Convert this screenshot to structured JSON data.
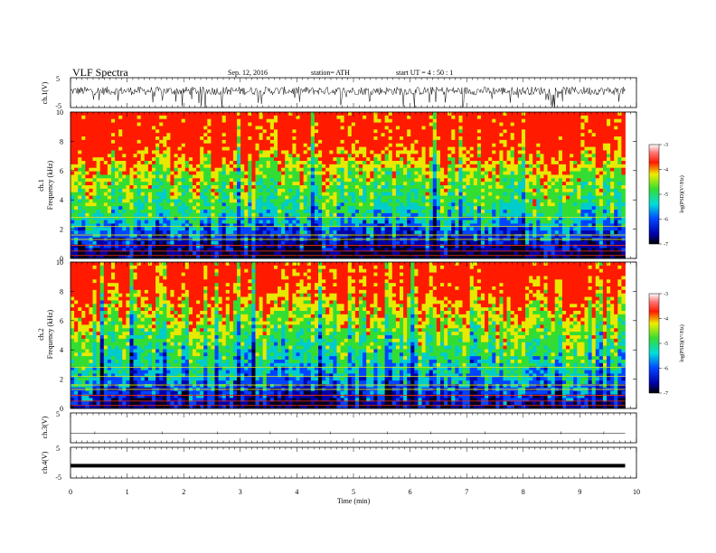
{
  "header": {
    "title": "VLF  Spectra",
    "date": "Sep. 12, 2016",
    "station": "station= ATH",
    "start": "start  UT  =   4  : 50 : 1"
  },
  "chart_data": [
    {
      "type": "line",
      "name": "ch1-waveform",
      "ylabel": "ch.1(V)",
      "ylim": [
        -5,
        5
      ],
      "yticks": [
        "5",
        "-5"
      ],
      "xlim": [
        0,
        10
      ],
      "description_level": 0.6
    },
    {
      "type": "heatmap",
      "name": "ch1-spectrogram",
      "ylabel": "ch.1\nFrequency  (kHz)",
      "ylabel_line1": "ch.1",
      "ylabel_line2": "Frequency  (kHz)",
      "ylim": [
        0,
        10
      ],
      "yticks": [
        "10",
        "8",
        "6",
        "4",
        "2",
        "0"
      ],
      "xlim": [
        0,
        9.8
      ],
      "colorbar": {
        "label": "log(PSD)(V²/Hz)",
        "ticks": [
          "-3",
          "-4",
          "-5",
          "-6",
          "-7"
        ],
        "range": [
          -7,
          -3
        ]
      },
      "psd_profile_khz": [
        0,
        1,
        2,
        3,
        4,
        5,
        6,
        7,
        8,
        9,
        10
      ],
      "psd_profile_log": [
        -7,
        -6.4,
        -5.9,
        -5.3,
        -5.0,
        -4.8,
        -4.5,
        -4.1,
        -3.7,
        -3.6,
        -3.6
      ]
    },
    {
      "type": "heatmap",
      "name": "ch2-spectrogram",
      "ylabel_line1": "ch.2",
      "ylabel_line2": "Frequency  (kHz)",
      "ylim": [
        0,
        10
      ],
      "yticks": [
        "10",
        "8",
        "6",
        "4",
        "2",
        "0"
      ],
      "xlim": [
        0,
        9.8
      ],
      "colorbar": {
        "label": "log(PSD)(V²/Hz)",
        "ticks": [
          "-3",
          "-4",
          "-5",
          "-6",
          "-7"
        ],
        "range": [
          -7,
          -3
        ]
      },
      "psd_profile_khz": [
        0,
        1,
        2,
        3,
        4,
        5,
        6,
        7,
        8,
        9,
        10
      ],
      "psd_profile_log": [
        -6.8,
        -6.2,
        -5.8,
        -5.4,
        -5.1,
        -4.9,
        -4.6,
        -4.3,
        -3.9,
        -3.7,
        -3.7
      ]
    },
    {
      "type": "line",
      "name": "ch3-waveform",
      "ylabel": "ch.3(V)",
      "ylim": [
        -5,
        5
      ],
      "yticks": [
        "5"
      ],
      "level": 0
    },
    {
      "type": "line",
      "name": "ch4-waveform",
      "ylabel": "ch.4(V)",
      "ylim": [
        -5,
        5
      ],
      "yticks": [
        "5",
        "-5"
      ],
      "level": -1.0
    }
  ],
  "xaxis": {
    "label": "Time  (min)",
    "ticks": [
      "0",
      "1",
      "2",
      "3",
      "4",
      "5",
      "6",
      "7",
      "8",
      "9",
      "10"
    ],
    "range": [
      0,
      10
    ]
  },
  "colors": {
    "red": "#ff1a00",
    "yellow": "#e8e800",
    "green": "#33dd33",
    "cyan": "#00cccc",
    "blue": "#0022ff",
    "navy": "#000044"
  }
}
